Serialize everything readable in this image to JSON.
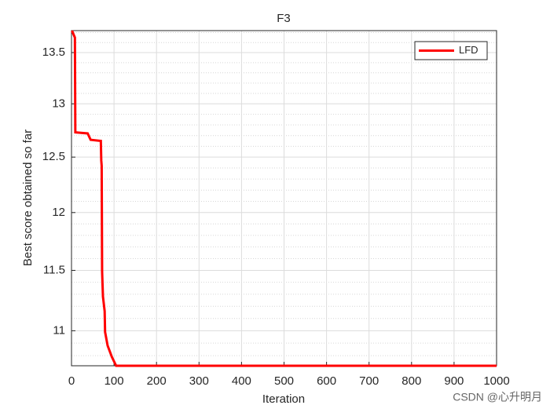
{
  "chart_data": {
    "type": "line",
    "title": "F3",
    "xlabel": "Iteration",
    "ylabel": "Best score obtained so far",
    "x": [
      1,
      8,
      9,
      38,
      45,
      69,
      70,
      71,
      72,
      74,
      78,
      79,
      85,
      95,
      105,
      1000
    ],
    "series": [
      {
        "name": "LFD",
        "color": "#ff0000",
        "values": [
          13.72,
          13.65,
          12.73,
          12.72,
          12.66,
          12.65,
          12.47,
          12.42,
          11.49,
          11.28,
          11.16,
          10.99,
          10.88,
          10.79,
          10.72,
          10.72
        ]
      }
    ],
    "xlim": [
      0,
      1000
    ],
    "xticks": [
      0,
      100,
      200,
      300,
      400,
      500,
      600,
      700,
      800,
      900,
      1000
    ],
    "ylim": [
      10.72,
      13.72
    ],
    "yscale": "log",
    "yticks": [
      11,
      11.5,
      12,
      12.5,
      13,
      13.5
    ],
    "yminorticks": [
      10.8,
      10.9,
      11.1,
      11.2,
      11.3,
      11.4,
      11.6,
      11.7,
      11.8,
      11.9,
      12.1,
      12.2,
      12.3,
      12.4,
      12.6,
      12.7,
      12.8,
      12.9,
      13.1,
      13.2,
      13.3,
      13.4,
      13.6,
      13.7
    ],
    "grid": true,
    "legend": "northeast",
    "watermark": "CSDN @心升明月"
  }
}
